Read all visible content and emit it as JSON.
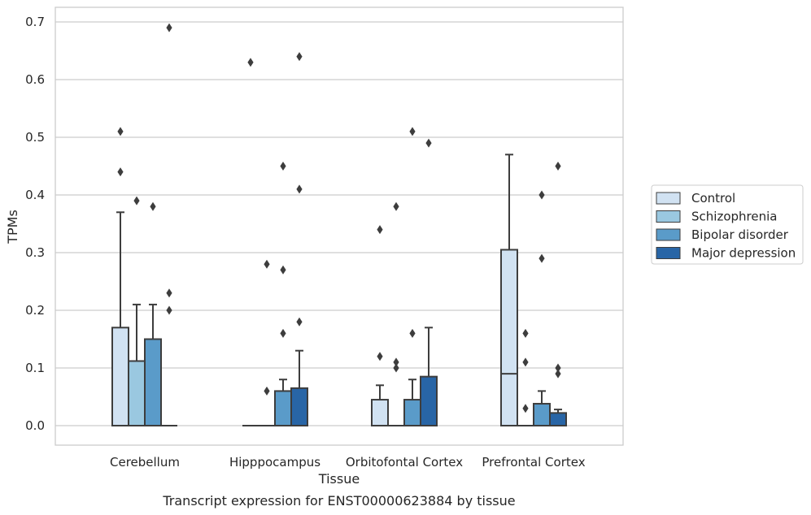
{
  "caption": "Transcript expression for ENST00000623884 by tissue",
  "chart_data": {
    "type": "box",
    "xlabel": "Tissue",
    "ylabel": "TPMs",
    "ylim": [
      -0.033,
      0.727
    ],
    "yticks": [
      0.0,
      0.1,
      0.2,
      0.3,
      0.4,
      0.5,
      0.6,
      0.7
    ],
    "ytick_labels": [
      "0.0",
      "0.1",
      "0.2",
      "0.3",
      "0.4",
      "0.5",
      "0.6",
      "0.7"
    ],
    "grid": "horizontal",
    "legend_position": "right",
    "categories": [
      "Cerebellum",
      "Hipppocampus",
      "Orbitofontal Cortex",
      "Prefrontal Cortex"
    ],
    "series": [
      {
        "name": "Control",
        "color": "#d1e2f2",
        "boxes": [
          {
            "q1": 0.0,
            "median": 0.0,
            "q3": 0.17,
            "whisker_low": 0.0,
            "whisker_high": 0.37,
            "outliers": [
              0.51,
              0.44
            ]
          },
          {
            "q1": 0.0,
            "median": 0.0,
            "q3": 0.0,
            "whisker_low": 0.0,
            "whisker_high": 0.0,
            "outliers": [
              0.63
            ]
          },
          {
            "q1": 0.0,
            "median": 0.0,
            "q3": 0.045,
            "whisker_low": 0.0,
            "whisker_high": 0.07,
            "outliers": [
              0.34,
              0.12
            ]
          },
          {
            "q1": 0.0,
            "median": 0.09,
            "q3": 0.305,
            "whisker_low": 0.0,
            "whisker_high": 0.47,
            "outliers": []
          }
        ]
      },
      {
        "name": "Schizophrenia",
        "color": "#9ac8e0",
        "boxes": [
          {
            "q1": 0.0,
            "median": 0.0,
            "q3": 0.112,
            "whisker_low": 0.0,
            "whisker_high": 0.21,
            "outliers": [
              0.39
            ]
          },
          {
            "q1": 0.0,
            "median": 0.0,
            "q3": 0.0,
            "whisker_low": 0.0,
            "whisker_high": 0.0,
            "outliers": [
              0.28,
              0.06
            ]
          },
          {
            "q1": 0.0,
            "median": 0.0,
            "q3": 0.0,
            "whisker_low": 0.0,
            "whisker_high": 0.0,
            "outliers": [
              0.38,
              0.11,
              0.1
            ]
          },
          {
            "q1": 0.0,
            "median": 0.0,
            "q3": 0.0,
            "whisker_low": 0.0,
            "whisker_high": 0.0,
            "outliers": [
              0.16,
              0.11,
              0.03
            ]
          }
        ]
      },
      {
        "name": "Bipolar disorder",
        "color": "#5a9bc9",
        "boxes": [
          {
            "q1": 0.0,
            "median": 0.0,
            "q3": 0.15,
            "whisker_low": 0.0,
            "whisker_high": 0.21,
            "outliers": [
              0.38
            ]
          },
          {
            "q1": 0.0,
            "median": 0.0,
            "q3": 0.06,
            "whisker_low": 0.0,
            "whisker_high": 0.08,
            "outliers": [
              0.45,
              0.27,
              0.16
            ]
          },
          {
            "q1": 0.0,
            "median": 0.0,
            "q3": 0.045,
            "whisker_low": 0.0,
            "whisker_high": 0.08,
            "outliers": [
              0.51,
              0.16
            ]
          },
          {
            "q1": 0.0,
            "median": 0.0,
            "q3": 0.038,
            "whisker_low": 0.0,
            "whisker_high": 0.06,
            "outliers": [
              0.4,
              0.29
            ]
          }
        ]
      },
      {
        "name": "Major depression",
        "color": "#2865a6",
        "boxes": [
          {
            "q1": 0.0,
            "median": 0.0,
            "q3": 0.0,
            "whisker_low": 0.0,
            "whisker_high": 0.0,
            "outliers": [
              0.69,
              0.23,
              0.2
            ]
          },
          {
            "q1": 0.0,
            "median": 0.0,
            "q3": 0.065,
            "whisker_low": 0.0,
            "whisker_high": 0.13,
            "outliers": [
              0.64,
              0.41,
              0.18
            ]
          },
          {
            "q1": 0.0,
            "median": 0.0,
            "q3": 0.085,
            "whisker_low": 0.0,
            "whisker_high": 0.17,
            "outliers": [
              0.49
            ]
          },
          {
            "q1": 0.0,
            "median": 0.0,
            "q3": 0.022,
            "whisker_low": 0.0,
            "whisker_high": 0.028,
            "outliers": [
              0.45,
              0.1,
              0.09
            ]
          }
        ]
      }
    ]
  }
}
